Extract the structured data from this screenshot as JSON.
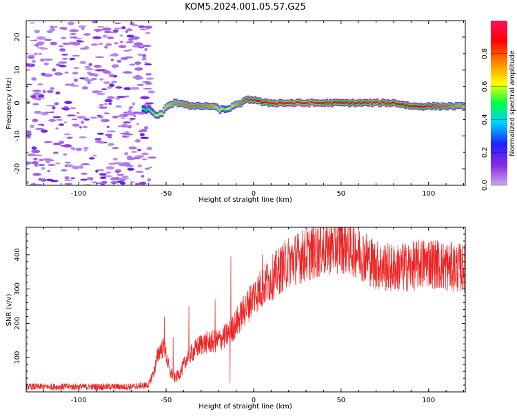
{
  "title": "KOM5.2024.001.05.57.G25",
  "colors": {
    "snr_line": "#ee2222",
    "axis": "#000000"
  },
  "chart_data": [
    {
      "type": "heatmap",
      "xlabel": "Height of straight line (km)",
      "ylabel": "Frequency (Hz)",
      "xlim": [
        -130,
        121
      ],
      "ylim": [
        -25,
        25
      ],
      "x_ticks": [
        -100,
        -50,
        0,
        50,
        100
      ],
      "y_ticks": [
        -20,
        -10,
        0,
        10,
        20
      ],
      "colorbar": {
        "label": "Normalized spectral amplitude",
        "range": [
          0,
          1
        ],
        "ticks": [
          "0.0",
          "0.2",
          "0.4",
          "0.6",
          "0.8"
        ],
        "colormap": [
          "#c8a8f0",
          "#8a2be2",
          "#2020ff",
          "#00d0ff",
          "#00ff40",
          "#ffff00",
          "#ff8000",
          "#ff0000",
          "#ff1060"
        ]
      },
      "ridge": [
        {
          "x": -64,
          "y": -2
        },
        {
          "x": -60,
          "y": -2
        },
        {
          "x": -56,
          "y": -4
        },
        {
          "x": -53,
          "y": -3
        },
        {
          "x": -50,
          "y": -1
        },
        {
          "x": -46,
          "y": 0
        },
        {
          "x": -42,
          "y": 0
        },
        {
          "x": -36,
          "y": -1
        },
        {
          "x": -30,
          "y": -1
        },
        {
          "x": -24,
          "y": -1
        },
        {
          "x": -20,
          "y": -2
        },
        {
          "x": -17,
          "y": -2
        },
        {
          "x": -12,
          "y": -1
        },
        {
          "x": -8,
          "y": 0
        },
        {
          "x": -4,
          "y": 1
        },
        {
          "x": 0,
          "y": 1
        },
        {
          "x": 5,
          "y": 0
        },
        {
          "x": 10,
          "y": 0
        },
        {
          "x": 20,
          "y": 0
        },
        {
          "x": 30,
          "y": 0
        },
        {
          "x": 40,
          "y": 0
        },
        {
          "x": 50,
          "y": 0
        },
        {
          "x": 60,
          "y": 0
        },
        {
          "x": 70,
          "y": 0
        },
        {
          "x": 80,
          "y": 0
        },
        {
          "x": 90,
          "y": -1
        },
        {
          "x": 100,
          "y": -1
        },
        {
          "x": 110,
          "y": -1
        },
        {
          "x": 121,
          "y": -1
        }
      ],
      "ridge_intensity": [
        {
          "x": -64,
          "v": 0.45
        },
        {
          "x": -56,
          "v": 0.6
        },
        {
          "x": -46,
          "v": 0.75
        },
        {
          "x": -36,
          "v": 0.8
        },
        {
          "x": -24,
          "v": 0.75
        },
        {
          "x": -17,
          "v": 0.55
        },
        {
          "x": -8,
          "v": 0.8
        },
        {
          "x": 0,
          "v": 0.85
        },
        {
          "x": 10,
          "v": 0.95
        },
        {
          "x": 30,
          "v": 0.98
        },
        {
          "x": 50,
          "v": 0.9
        },
        {
          "x": 70,
          "v": 0.95
        },
        {
          "x": 90,
          "v": 0.9
        },
        {
          "x": 110,
          "v": 0.8
        },
        {
          "x": 121,
          "v": 0.7
        }
      ],
      "noise_region": [
        -130,
        -62
      ]
    },
    {
      "type": "line",
      "xlabel": "Height of straight line (km)",
      "ylabel": "SNR (v/v)",
      "xlim": [
        -130,
        121
      ],
      "ylim": [
        0,
        480
      ],
      "x_ticks": [
        -100,
        -50,
        0,
        50,
        100
      ],
      "y_ticks": [
        100,
        200,
        300,
        400
      ],
      "envelope": [
        {
          "x": -130,
          "y": 15
        },
        {
          "x": -100,
          "y": 15
        },
        {
          "x": -70,
          "y": 15
        },
        {
          "x": -60,
          "y": 20
        },
        {
          "x": -57,
          "y": 60
        },
        {
          "x": -54,
          "y": 120
        },
        {
          "x": -51,
          "y": 130
        },
        {
          "x": -48,
          "y": 60
        },
        {
          "x": -45,
          "y": 40
        },
        {
          "x": -42,
          "y": 55
        },
        {
          "x": -38,
          "y": 100
        },
        {
          "x": -30,
          "y": 140
        },
        {
          "x": -20,
          "y": 150
        },
        {
          "x": -14,
          "y": 170
        },
        {
          "x": -10,
          "y": 200
        },
        {
          "x": -5,
          "y": 240
        },
        {
          "x": 0,
          "y": 280
        },
        {
          "x": 10,
          "y": 330
        },
        {
          "x": 20,
          "y": 380
        },
        {
          "x": 35,
          "y": 410
        },
        {
          "x": 50,
          "y": 430
        },
        {
          "x": 60,
          "y": 410
        },
        {
          "x": 70,
          "y": 370
        },
        {
          "x": 80,
          "y": 360
        },
        {
          "x": 90,
          "y": 365
        },
        {
          "x": 100,
          "y": 380
        },
        {
          "x": 110,
          "y": 365
        },
        {
          "x": 121,
          "y": 360
        }
      ],
      "spikes": [
        {
          "x": -51,
          "y": 220
        },
        {
          "x": -46,
          "y": 160
        },
        {
          "x": -37,
          "y": 250
        },
        {
          "x": -22,
          "y": 270
        },
        {
          "x": -13,
          "y": 395
        },
        {
          "x": -13.5,
          "y": 25
        },
        {
          "x": 5,
          "y": 400
        },
        {
          "x": 50,
          "y": 480
        }
      ]
    }
  ]
}
